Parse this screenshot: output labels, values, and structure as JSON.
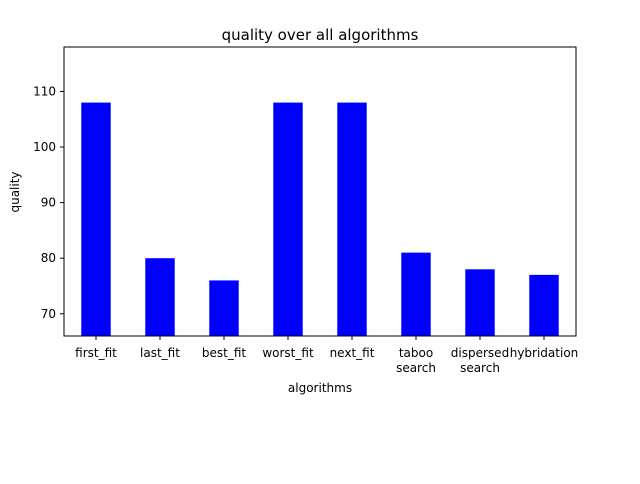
{
  "chart_data": {
    "type": "bar",
    "title": "quality over all algorithms",
    "xlabel": "algorithms",
    "ylabel": "quality",
    "categories": [
      [
        "first_fit"
      ],
      [
        "last_fit"
      ],
      [
        "best_fit"
      ],
      [
        "worst_fit"
      ],
      [
        "next_fit"
      ],
      [
        "taboo",
        "search"
      ],
      [
        "dispersed",
        "search"
      ],
      [
        "hybridation"
      ]
    ],
    "values": [
      108,
      80,
      76,
      108,
      108,
      81,
      78,
      77
    ],
    "ylim": [
      66,
      118
    ],
    "yticks": [
      70,
      80,
      90,
      100,
      110
    ],
    "bar_color": "#0000ff",
    "grid": false,
    "legend": "none"
  }
}
